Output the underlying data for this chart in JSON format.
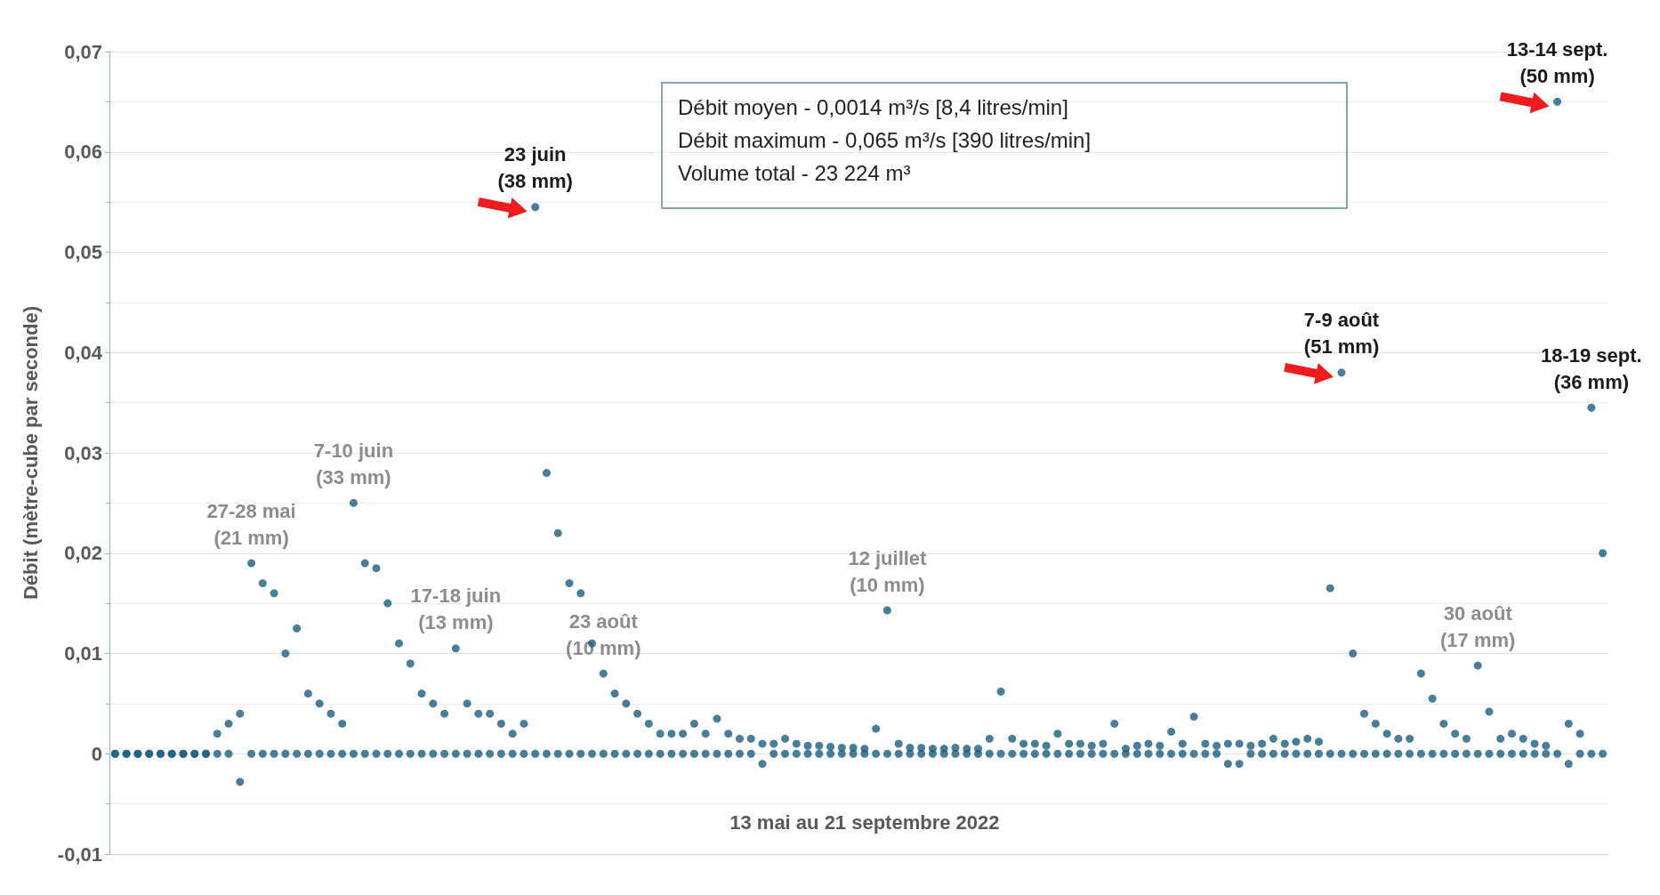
{
  "chart_data": {
    "type": "scatter",
    "ylabel": "Débit (mètre-cube par seconde)",
    "xlabel": "13 mai au 21 septembre 2022",
    "categories": [
      null,
      null,
      null,
      null,
      null,
      null,
      null,
      null,
      null,
      null,
      null,
      null,
      null,
      null,
      null,
      null,
      null,
      null,
      null,
      null,
      null,
      null,
      null,
      null,
      null,
      null,
      null,
      null,
      null,
      null,
      null,
      null,
      null,
      null,
      null,
      null,
      null,
      null,
      null,
      null,
      null,
      null,
      null,
      null,
      null,
      null,
      null,
      null,
      null,
      null,
      null,
      null,
      null,
      null,
      null,
      null,
      null,
      null,
      null,
      null,
      null,
      null,
      null,
      null,
      null,
      null,
      null,
      null,
      null,
      null,
      null,
      null,
      null,
      null,
      null,
      null,
      null,
      null,
      null,
      null,
      null,
      null,
      null,
      null,
      null,
      null,
      null,
      null,
      null,
      null,
      null,
      null,
      null,
      null,
      null,
      null,
      null,
      null,
      null,
      null,
      null,
      null,
      null,
      null,
      null,
      null,
      null,
      null,
      null,
      null,
      null,
      null,
      null,
      null,
      null,
      null,
      null,
      null,
      null,
      null,
      null,
      null,
      null,
      null,
      null,
      null,
      null,
      null,
      null,
      null,
      null,
      null
    ],
    "series": [
      {
        "color": "#1b5e80",
        "values": [
          0,
          0,
          0,
          0,
          0,
          0,
          0,
          0,
          0,
          0.002,
          0.003,
          0.004,
          0.019,
          0.017,
          0.016,
          0.01,
          0.0125,
          0.006,
          0.005,
          0.004,
          0.003,
          0.025,
          0.019,
          0.0185,
          0.015,
          0.011,
          0.009,
          0.006,
          0.005,
          0.004,
          0.0105,
          0.005,
          0.004,
          0.004,
          0.003,
          0.002,
          0.003,
          0.0545,
          0.028,
          0.022,
          0.017,
          0.016,
          0.011,
          0.008,
          0.006,
          0.005,
          0.004,
          0.003,
          0.002,
          0.002,
          0.002,
          0.003,
          0.002,
          0.0035,
          0.002,
          0.0015,
          0.0015,
          0.001,
          0.001,
          0.0015,
          0.001,
          0.0008,
          0.0008,
          0.0007,
          0.0006,
          0.0006,
          0.0005,
          0.0025,
          0.0143,
          0.001,
          0.0006,
          0.0006,
          0.0005,
          0.0005,
          0.0006,
          0.0005,
          0.0005,
          0.0015,
          0.0062,
          0.0015,
          0.001,
          0.001,
          0.0008,
          0.002,
          0.001,
          0.001,
          0.0008,
          0.001,
          0.003,
          0.0005,
          0.0008,
          0.001,
          0.0008,
          0.0022,
          0.001,
          0.0037,
          0.001,
          0.0008,
          0.001,
          0.001,
          0.0008,
          0.001,
          0.0015,
          0.001,
          0.0012,
          0.0015,
          0.0012,
          0.0165,
          0.038,
          0.01,
          0.004,
          0.003,
          0.002,
          0.0015,
          0.0015,
          0.008,
          0.0055,
          0.003,
          0.002,
          0.0015,
          0.0088,
          0.0042,
          0.0015,
          0.002,
          0.0015,
          0.001,
          0.0008,
          0.065,
          0.003,
          0.002,
          0.0345,
          0.02
        ]
      },
      {
        "color": "#1b5e80",
        "values": [
          0,
          0,
          0,
          0,
          0,
          0,
          0,
          0,
          0,
          0,
          0,
          -0.0028,
          0,
          0,
          0,
          0,
          0,
          0,
          0,
          0,
          0,
          0,
          0,
          0,
          0,
          0,
          0,
          0,
          0,
          0,
          0,
          0,
          0,
          0,
          0,
          0,
          0,
          0,
          0,
          0,
          0,
          0,
          0,
          0,
          0,
          0,
          0,
          0,
          0,
          0,
          0,
          0,
          0,
          0,
          0,
          0,
          0,
          -0.001,
          0,
          0,
          0,
          0,
          0,
          0,
          0,
          0,
          0,
          0,
          0,
          0,
          0,
          0,
          0,
          0,
          0,
          0,
          0,
          0,
          0,
          0,
          0,
          0,
          0,
          0,
          0,
          0,
          0,
          0,
          0,
          0,
          0,
          0,
          0,
          0,
          0,
          0,
          0,
          0,
          -0.001,
          -0.001,
          0,
          0,
          0,
          0,
          0,
          0,
          0,
          0,
          0,
          0,
          0,
          0,
          0,
          0,
          0,
          0,
          0,
          0,
          0,
          0,
          0,
          0,
          0,
          0,
          0,
          0,
          0,
          0,
          -0.001,
          0,
          0,
          0
        ]
      }
    ],
    "ylim": [
      -0.01,
      0.07
    ],
    "yticks": [
      {
        "value": -0.01,
        "label": "-0,01"
      },
      {
        "value": -0.005,
        "label": null
      },
      0,
      {
        "value": 0.005,
        "label": null
      },
      {
        "value": 0.01,
        "label": "0,01"
      },
      {
        "value": 0.015,
        "label": null
      },
      {
        "value": 0.02,
        "label": "0,02"
      },
      {
        "value": 0.025,
        "label": null
      },
      {
        "value": 0.03,
        "label": "0,03"
      },
      {
        "value": 0.035,
        "label": null
      },
      {
        "value": 0.04,
        "label": "0,04"
      },
      {
        "value": 0.045,
        "label": null
      },
      {
        "value": 0.05,
        "label": "0,05"
      },
      {
        "value": 0.055,
        "label": null
      },
      {
        "value": 0.06,
        "label": "0,06"
      },
      {
        "value": 0.065,
        "label": null
      },
      {
        "value": 0.07,
        "label": "0,07"
      }
    ],
    "grid": "y",
    "tick_labels": "y",
    "marker": "circle",
    "annotations": [
      "Débit moyen - 0,0014 m³/s [8,4 litres/min]",
      "Débit maximum - 0,065 m³/s [390 litres/min]",
      "Volume total - 23 224 m³",
      {
        "text": "27-28 mai\n(21 mm)",
        "y": 0.019
      },
      {
        "text": "7-10 juin\n(33 mm)",
        "y": 0.025
      },
      {
        "text": "17-18 juin\n(13 mm)",
        "y": 0.0105
      },
      {
        "text": "23 juin\n(38 mm)",
        "y": 0.0545
      },
      {
        "text": "12 juillet\n(10 mm)",
        "y": 0.0143
      },
      {
        "text": "7-9 août\n(51 mm)",
        "y": 0.038
      },
      {
        "text": "23 août\n(10 mm)",
        "y": 0.008
      },
      {
        "text": "30 août\n(17 mm)",
        "y": 0.0088
      },
      {
        "text": "13-14 sept.\n(50 mm)",
        "y": 0.065
      },
      {
        "text": "18-19 sept.\n(36 mm)",
        "y": 0.0345
      }
    ]
  }
}
